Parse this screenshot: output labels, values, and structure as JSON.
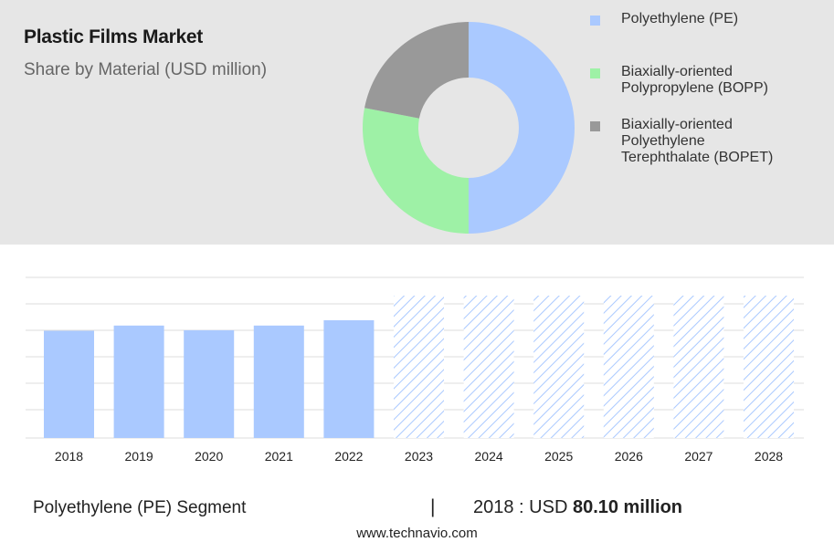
{
  "header": {
    "title": "Plastic Films Market",
    "subtitle": "Share by Material (USD million)"
  },
  "legend": [
    {
      "lines": [
        "Polyethylene (PE)"
      ],
      "color": "#aac9ff"
    },
    {
      "lines": [
        "Biaxially-oriented",
        "Polypropylene (BOPP)"
      ],
      "color": "#9ef1a6"
    },
    {
      "lines": [
        "Biaxially-oriented",
        "Polyethylene",
        "Terephthalate (BOPET)"
      ],
      "color": "#999999"
    }
  ],
  "footer": {
    "segment": "Polyethylene (PE) Segment",
    "divider": "|",
    "value_prefix": "2018 : USD",
    "value_bold": "80.10 million",
    "source": "www.technavio.com"
  },
  "chart_data": [
    {
      "type": "pie",
      "variant": "donut",
      "labels": [
        "Polyethylene (PE)",
        "Biaxially-oriented Polypropylene (BOPP)",
        "Biaxially-oriented Polyethylene Terephthalate (BOPET)"
      ],
      "values": [
        50,
        28,
        22
      ],
      "colors": [
        "#aac9ff",
        "#9ef1a6",
        "#999999"
      ]
    },
    {
      "type": "bar",
      "categories": [
        "2018",
        "2019",
        "2020",
        "2021",
        "2022",
        "2023",
        "2024",
        "2025",
        "2026",
        "2027",
        "2028"
      ],
      "values": [
        80.1,
        84,
        80.5,
        84,
        88,
        null,
        null,
        null,
        null,
        null,
        null
      ],
      "forecast_categories": [
        "2023",
        "2024",
        "2025",
        "2026",
        "2027",
        "2028"
      ],
      "bar_color": "#aac9ff",
      "forecast_pattern": "diagonal-hatch",
      "ylim": [
        0,
        120
      ],
      "grid": true,
      "xlabel": "",
      "ylabel": ""
    }
  ]
}
